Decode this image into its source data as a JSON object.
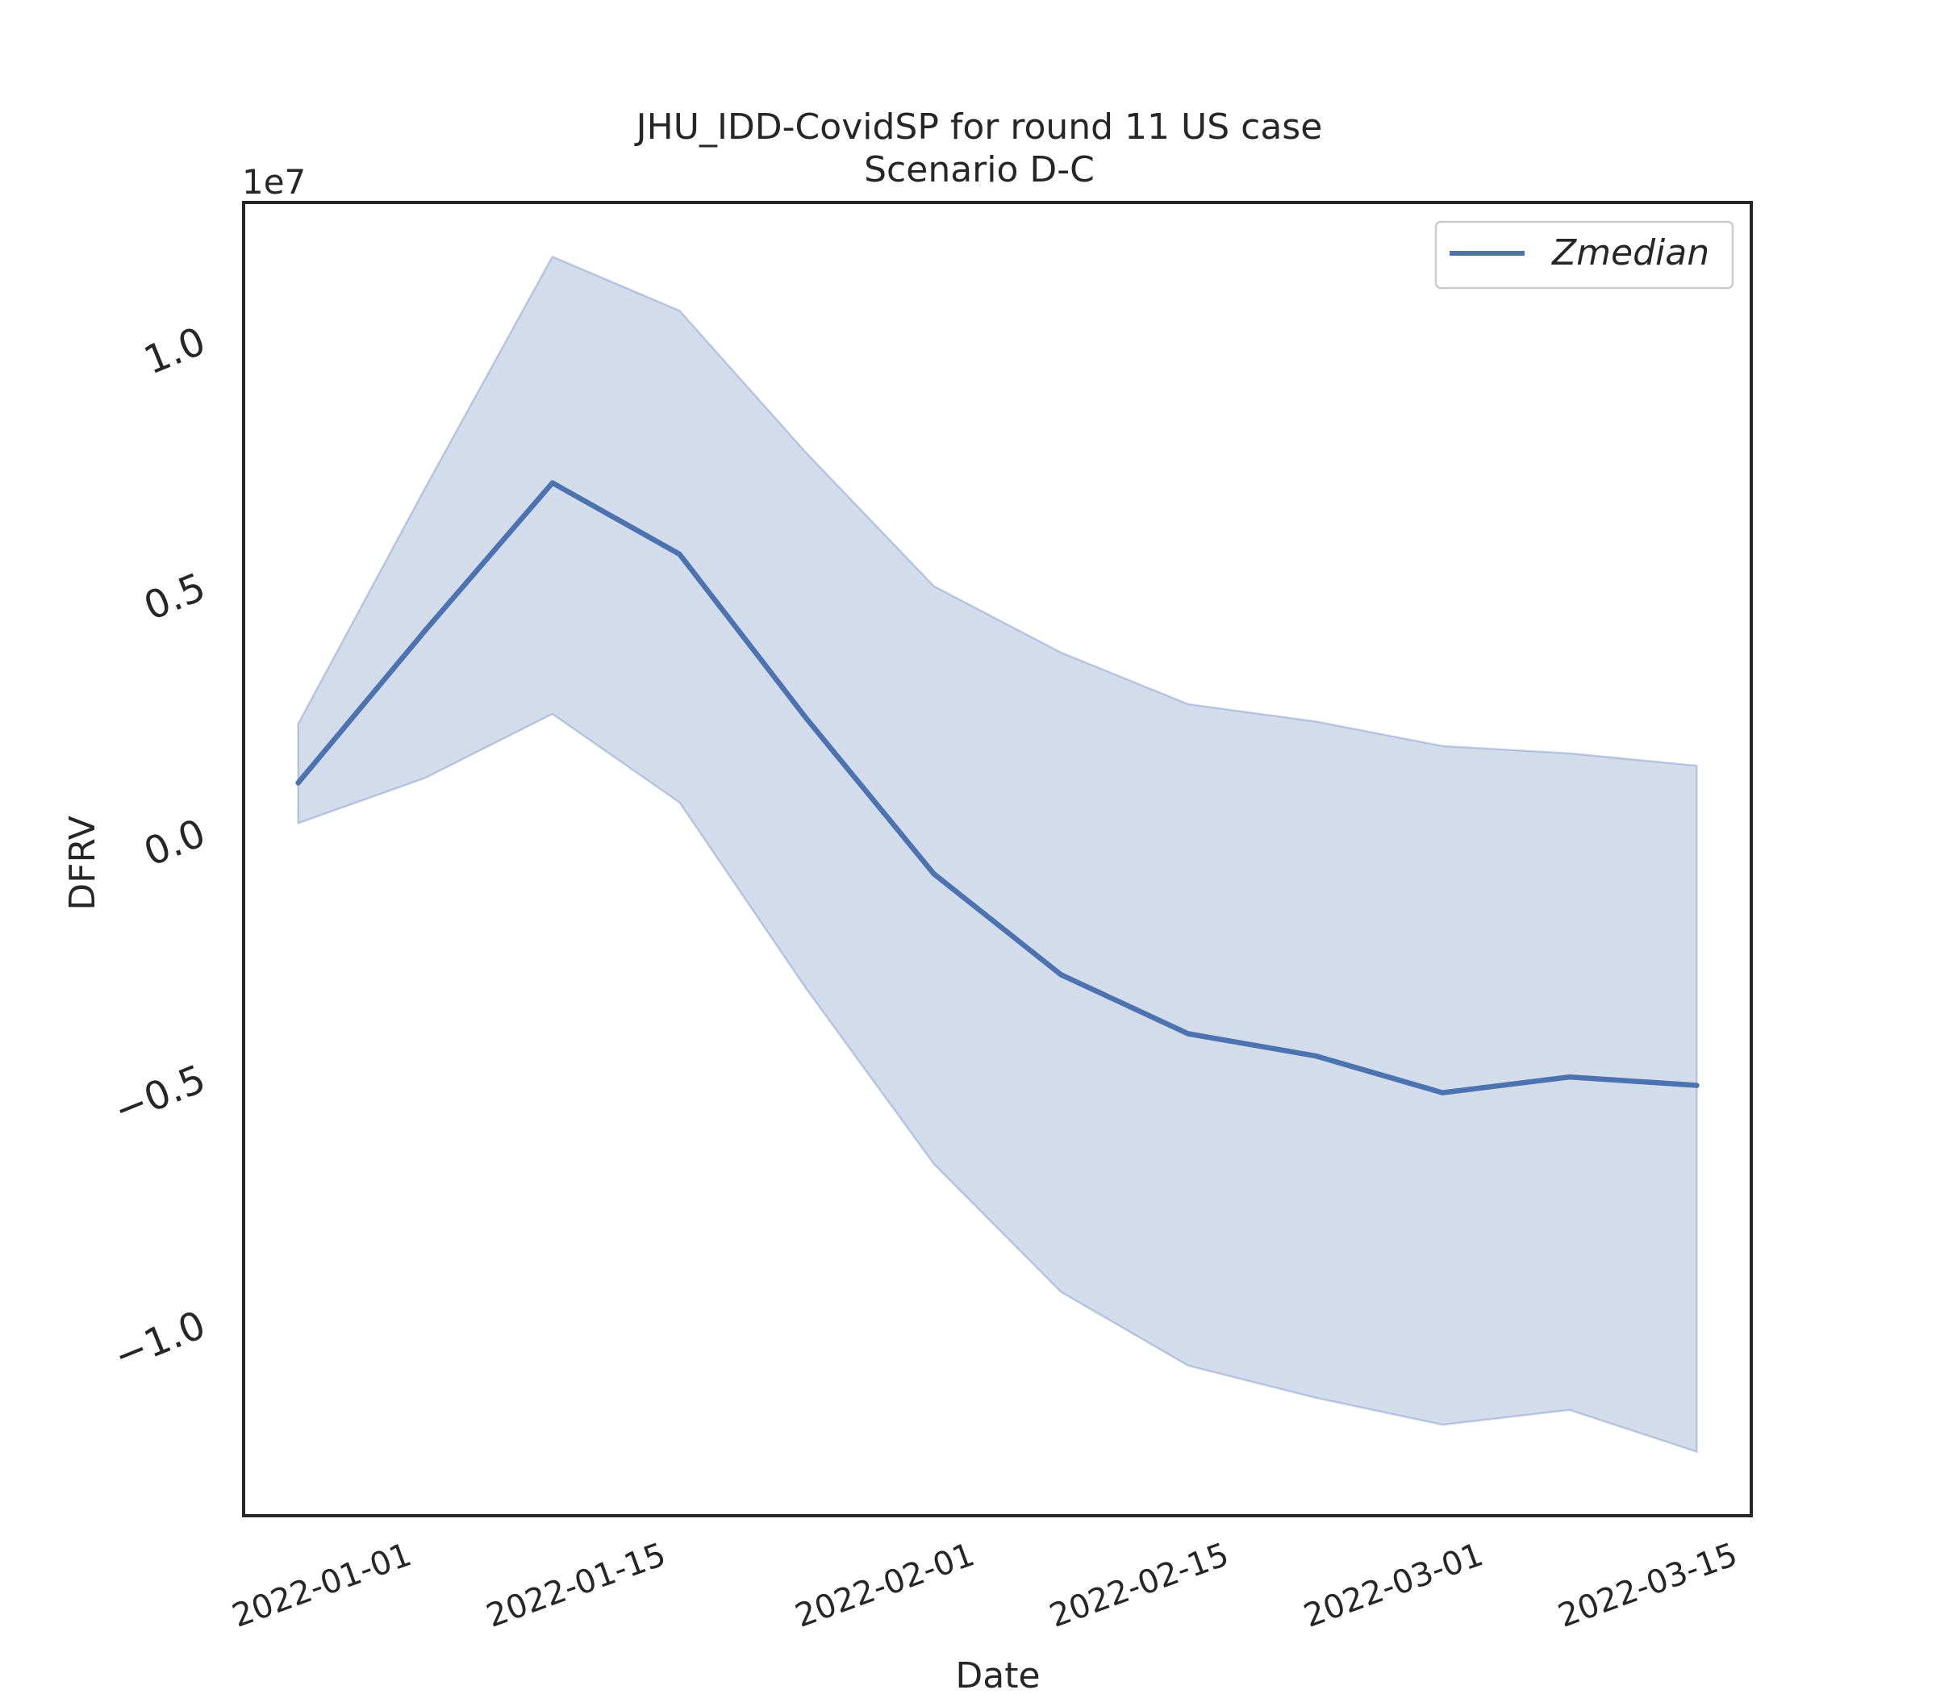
{
  "chart_data": {
    "type": "line",
    "title": "JHU_IDD-CovidSP for round 11 US case",
    "subtitle": "Scenario D-C",
    "xlabel": "Date",
    "ylabel": "DFRV",
    "y_offset_label": "1e7",
    "y_scale": 10000000,
    "xlim": [
      "2021-12-23",
      "2022-03-16"
    ],
    "ylim": [
      -13900000,
      12800000
    ],
    "x_ticks": [
      "2022-01-01",
      "2022-01-15",
      "2022-02-01",
      "2022-02-15",
      "2022-03-01",
      "2022-03-15"
    ],
    "y_ticks": [
      -10000000,
      -5000000,
      0,
      5000000,
      10000000
    ],
    "y_tick_labels": [
      "−1.0",
      "−0.5",
      "0.0",
      "0.5",
      "1.0"
    ],
    "grid": false,
    "legend_position": "top-right",
    "x": [
      "2021-12-26",
      "2022-01-02",
      "2022-01-09",
      "2022-01-16",
      "2022-01-23",
      "2022-01-30",
      "2022-02-06",
      "2022-02-13",
      "2022-02-20",
      "2022-02-27",
      "2022-03-06",
      "2022-03-13"
    ],
    "series": [
      {
        "name": "Zmedian",
        "color": "#4c72b0",
        "values": [
          1000000,
          4100000,
          7100000,
          5650000,
          2300000,
          -850000,
          -2900000,
          -4100000,
          -4550000,
          -5300000,
          -4980000,
          -5150000
        ],
        "band_upper": [
          2200000,
          7000000,
          11700000,
          10600000,
          7700000,
          5000000,
          3650000,
          2600000,
          2250000,
          1750000,
          1600000,
          1350000
        ],
        "band_lower": [
          180000,
          1100000,
          2400000,
          600000,
          -3200000,
          -6750000,
          -9350000,
          -10850000,
          -11500000,
          -12050000,
          -11750000,
          -12600000
        ]
      }
    ],
    "colors": {
      "line": "#4c72b0",
      "band": "#4c72b0",
      "axes": "#262626",
      "text": "#262626"
    }
  }
}
